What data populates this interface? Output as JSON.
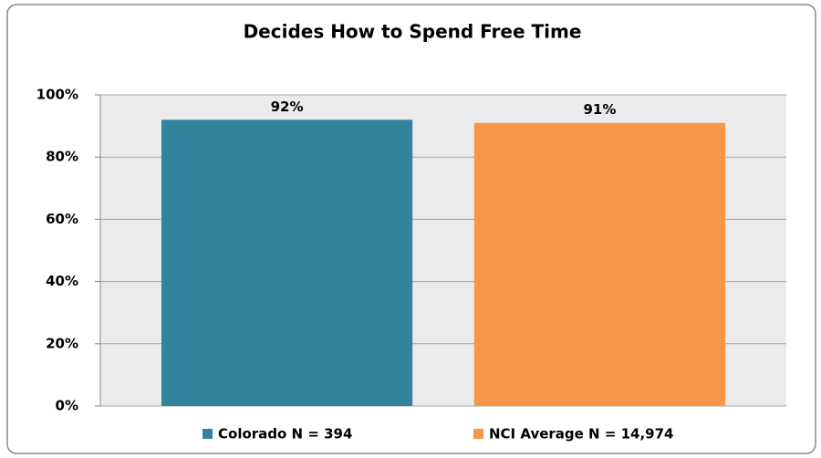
{
  "chart_data": {
    "type": "bar",
    "title": "Decides How to Spend Free Time",
    "categories": [
      null
    ],
    "series": [
      {
        "name": "Colorado N = 394",
        "color": "#31849b",
        "values": [
          92
        ],
        "value_labels": [
          "92%"
        ]
      },
      {
        "name": "NCI Average N = 14,974",
        "color": "#f79646",
        "values": [
          91
        ],
        "value_labels": [
          "91%"
        ]
      }
    ],
    "ylim": [
      0,
      100
    ],
    "yticks": [
      {
        "value": 0,
        "label": "0%"
      },
      {
        "value": 20,
        "label": "20%"
      },
      {
        "value": 40,
        "label": "40%"
      },
      {
        "value": 60,
        "label": "60%"
      },
      {
        "value": 80,
        "label": "80%"
      },
      {
        "value": 100,
        "label": "100%"
      }
    ],
    "grid": true,
    "legend": "bottom"
  }
}
